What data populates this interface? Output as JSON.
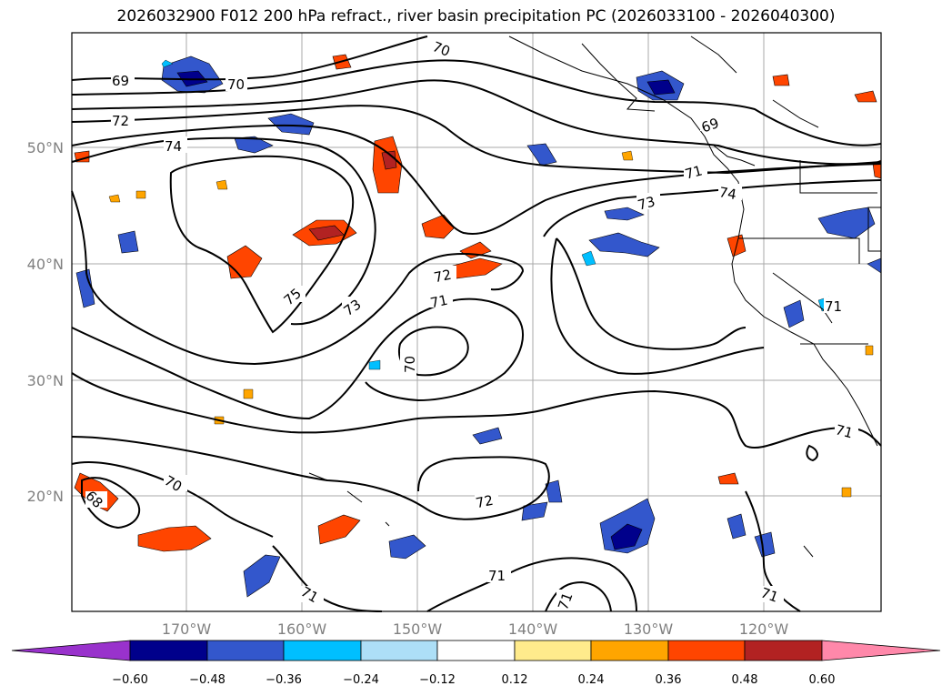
{
  "title": "2026032900 F012 200 hPa refract., river basin precipitation PC (2026033100 - 2026040300)",
  "map": {
    "lat_labels": [
      "50°N",
      "40°N",
      "30°N",
      "20°N"
    ],
    "lon_labels": [
      "170°W",
      "160°W",
      "150°W",
      "140°W",
      "130°W",
      "120°W"
    ],
    "contour_labels": [
      "69",
      "70",
      "72",
      "74",
      "69",
      "71",
      "74",
      "73",
      "75",
      "73",
      "72",
      "71",
      "70",
      "70",
      "68",
      "72",
      "71",
      "71",
      "71",
      "71",
      "71",
      "71"
    ],
    "colors": {
      "land_line": "#000000",
      "grid": "#a0a0a0",
      "ocean": "#ffffff"
    }
  },
  "colorbar": {
    "ticks": [
      "−0.60",
      "−0.48",
      "−0.36",
      "−0.24",
      "−0.12",
      "0.12",
      "0.24",
      "0.36",
      "0.48",
      "0.60"
    ],
    "colors": [
      "#9932CC",
      "#00008B",
      "#3357CC",
      "#00BFFF",
      "#ADDFF7",
      "#FFFFFF",
      "#FFEB8C",
      "#FFA500",
      "#FF4500",
      "#B22222",
      "#FF88AA"
    ]
  }
}
